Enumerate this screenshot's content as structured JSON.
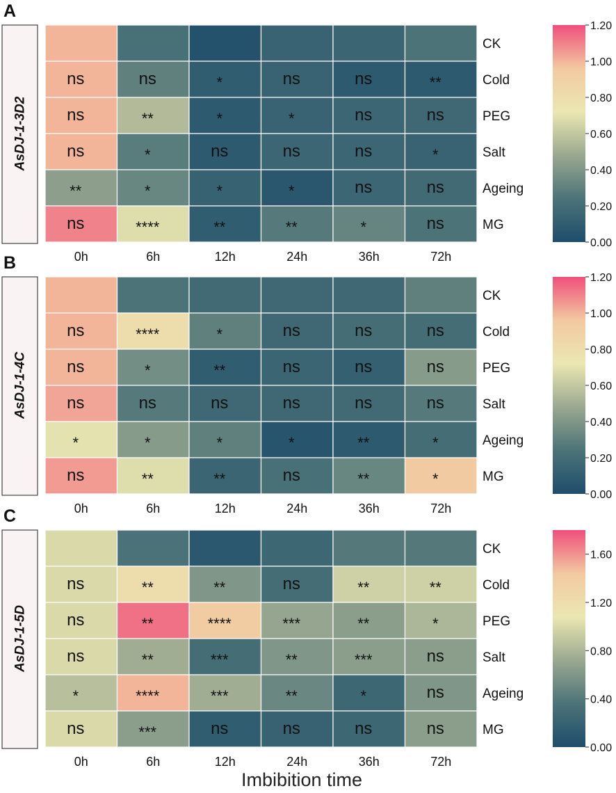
{
  "figure": {
    "xlabel": "Imbibition time",
    "colormap": [
      "#1e4d6b",
      "#4c7378",
      "#9aa890",
      "#ebe7b2",
      "#f2c9a0",
      "#ef4f7c"
    ]
  },
  "chart_data": [
    {
      "type": "heatmap",
      "panel_label": "A",
      "gene": "AsDJ-1-3D2",
      "xlabel": "Imbibition time",
      "x_categories": [
        "0h",
        "6h",
        "12h",
        "24h",
        "36h",
        "72h"
      ],
      "y_categories": [
        "CK",
        "Cold",
        "PEG",
        "Salt",
        "Ageing",
        "MG"
      ],
      "values": [
        [
          1.0,
          0.22,
          0.03,
          0.14,
          0.15,
          0.24
        ],
        [
          1.0,
          0.3,
          0.1,
          0.14,
          0.08,
          0.08
        ],
        [
          1.0,
          0.55,
          0.08,
          0.14,
          0.16,
          0.17
        ],
        [
          1.0,
          0.28,
          0.08,
          0.16,
          0.16,
          0.14
        ],
        [
          0.44,
          0.33,
          0.13,
          0.06,
          0.16,
          0.18
        ],
        [
          1.1,
          0.68,
          0.1,
          0.27,
          0.32,
          0.24
        ]
      ],
      "annotations": [
        [
          "",
          "",
          "",
          "",
          "",
          ""
        ],
        [
          "ns",
          "ns",
          "*",
          "ns",
          "ns",
          "**"
        ],
        [
          "ns",
          "**",
          "*",
          "*",
          "ns",
          "ns"
        ],
        [
          "ns",
          "*",
          "ns",
          "ns",
          "ns",
          "*"
        ],
        [
          "**",
          "*",
          "*",
          "*",
          "ns",
          "ns"
        ],
        [
          "ns",
          "****",
          "**",
          "**",
          "*",
          "ns"
        ]
      ],
      "colorbar_range": [
        0,
        1.2
      ],
      "colorbar_ticks": [
        "0.00",
        "0.20",
        "0.40",
        "0.60",
        "0.80",
        "1.00",
        "1.20"
      ]
    },
    {
      "type": "heatmap",
      "panel_label": "B",
      "gene": "AsDJ-1-4C",
      "xlabel": "Imbibition time",
      "x_categories": [
        "0h",
        "6h",
        "12h",
        "24h",
        "36h",
        "72h"
      ],
      "y_categories": [
        "CK",
        "Cold",
        "PEG",
        "Salt",
        "Ageing",
        "MG"
      ],
      "values": [
        [
          1.0,
          0.24,
          0.18,
          0.17,
          0.17,
          0.3
        ],
        [
          1.0,
          0.8,
          0.3,
          0.17,
          0.2,
          0.2
        ],
        [
          1.0,
          0.36,
          0.1,
          0.15,
          0.12,
          0.42
        ],
        [
          1.03,
          0.27,
          0.17,
          0.17,
          0.18,
          0.27
        ],
        [
          0.7,
          0.42,
          0.3,
          0.05,
          0.08,
          0.2
        ],
        [
          1.05,
          0.68,
          0.15,
          0.22,
          0.33,
          0.95
        ]
      ],
      "annotations": [
        [
          "",
          "",
          "",
          "",
          "",
          ""
        ],
        [
          "ns",
          "****",
          "*",
          "ns",
          "ns",
          "ns"
        ],
        [
          "ns",
          "*",
          "**",
          "ns",
          "ns",
          "ns"
        ],
        [
          "ns",
          "ns",
          "ns",
          "ns",
          "ns",
          "ns"
        ],
        [
          "*",
          "*",
          "*",
          "*",
          "**",
          "*"
        ],
        [
          "ns",
          "**",
          "**",
          "ns",
          "**",
          "*"
        ]
      ],
      "colorbar_range": [
        0,
        1.2
      ],
      "colorbar_ticks": [
        "0.00",
        "0.20",
        "0.40",
        "0.60",
        "0.80",
        "1.00",
        "1.20"
      ]
    },
    {
      "type": "heatmap",
      "panel_label": "C",
      "gene": "AsDJ-1-5D",
      "xlabel": "Imbibition time",
      "x_categories": [
        "0h",
        "6h",
        "12h",
        "24h",
        "36h",
        "72h"
      ],
      "y_categories": [
        "CK",
        "Cold",
        "PEG",
        "Salt",
        "Ageing",
        "MG"
      ],
      "values": [
        [
          1.0,
          0.35,
          0.1,
          0.25,
          0.4,
          0.4
        ],
        [
          1.0,
          1.2,
          0.6,
          0.3,
          0.95,
          0.95
        ],
        [
          1.0,
          1.7,
          1.4,
          0.7,
          0.65,
          0.8
        ],
        [
          1.0,
          0.75,
          0.3,
          0.6,
          0.65,
          0.65
        ],
        [
          0.85,
          1.5,
          0.75,
          0.5,
          0.25,
          0.6
        ],
        [
          1.0,
          0.65,
          0.15,
          0.2,
          0.25,
          0.65
        ]
      ],
      "annotations": [
        [
          "",
          "",
          "",
          "",
          "",
          ""
        ],
        [
          "ns",
          "**",
          "**",
          "ns",
          "**",
          "**"
        ],
        [
          "ns",
          "**",
          "****",
          "***",
          "**",
          "*"
        ],
        [
          "ns",
          "**",
          "***",
          "**",
          "***",
          "ns"
        ],
        [
          "*",
          "****",
          "***",
          "**",
          "*",
          "ns"
        ],
        [
          "ns",
          "***",
          "ns",
          "ns",
          "ns",
          "ns"
        ]
      ],
      "colorbar_range": [
        0,
        1.8
      ],
      "colorbar_ticks": [
        "0.00",
        "0.40",
        "0.80",
        "1.20",
        "1.60"
      ]
    }
  ]
}
